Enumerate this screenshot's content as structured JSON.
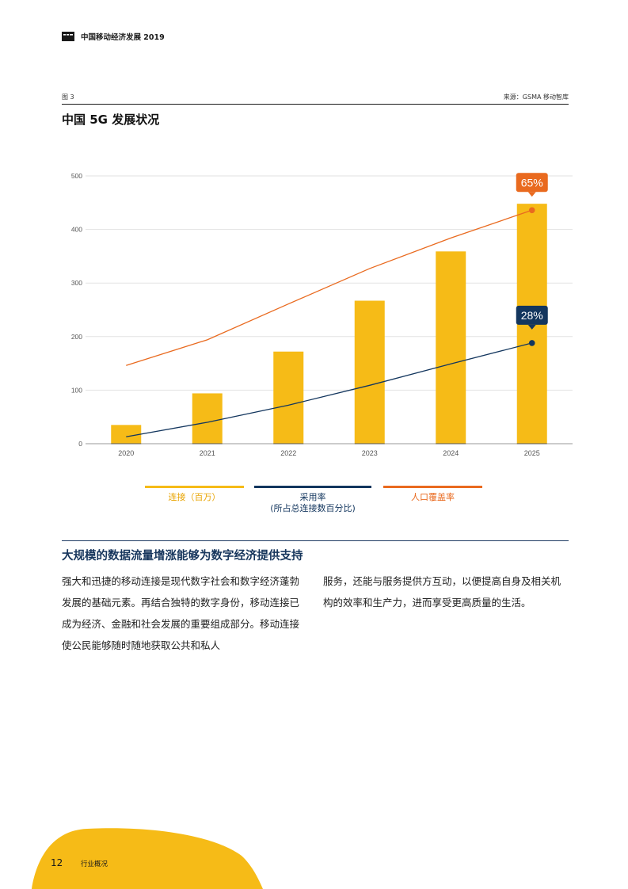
{
  "header": {
    "report_title": "中国移动经济发展 2019"
  },
  "figure": {
    "number": "图 3",
    "source": "来源：GSMA 移动智库",
    "title": "中国 5G 发展状况"
  },
  "chart_data": {
    "type": "bar",
    "categories": [
      "2020",
      "2021",
      "2022",
      "2023",
      "2024",
      "2025"
    ],
    "ylim": [
      0,
      500
    ],
    "yticks": [
      0,
      100,
      200,
      300,
      400,
      500
    ],
    "grid": true,
    "legend_position": "bottom",
    "series": [
      {
        "name": "连接（百万）",
        "type": "bar",
        "color": "#F6BB17",
        "values": [
          35,
          94,
          172,
          267,
          359,
          448
        ]
      },
      {
        "name": "采用率（所占总连接数百分比）",
        "type": "line",
        "color": "#13365E",
        "values": [
          13,
          40,
          72,
          109,
          149,
          188
        ]
      },
      {
        "name": "人口覆盖率",
        "type": "line",
        "color": "#E96A1F",
        "values": [
          146,
          194,
          261,
          327,
          384,
          436
        ]
      }
    ],
    "annotations": [
      {
        "series": "人口覆盖率",
        "category": "2025",
        "label": "65%",
        "color": "#E96A1F"
      },
      {
        "series": "采用率（所占总连接数百分比）",
        "category": "2025",
        "label": "28%",
        "color": "#13365E"
      }
    ]
  },
  "legend": {
    "bars_label": "连接（百万）",
    "adoption_label_1": "采用率",
    "adoption_label_2": "(所占总连接数百分比)",
    "coverage_label": "人口覆盖率"
  },
  "section": {
    "title": "大规模的数据流量增涨能够为数字经济提供支持",
    "col1": "强大和迅捷的移动连接是现代数字社会和数字经济蓬勃发展的基础元素。再结合独特的数字身份，移动连接已成为经济、金融和社会发展的重要组成部分。移动连接使公民能够随时随地获取公共和私人",
    "col2": "服务，还能与服务提供方互动，以便提高自身及相关机构的效率和生产力，进而享受更高质量的生活。"
  },
  "footer": {
    "page_number": "12",
    "section_label": "行业概况"
  },
  "colors": {
    "accent_yellow": "#F6BB17",
    "navy": "#13365E",
    "orange": "#E96A1F"
  }
}
